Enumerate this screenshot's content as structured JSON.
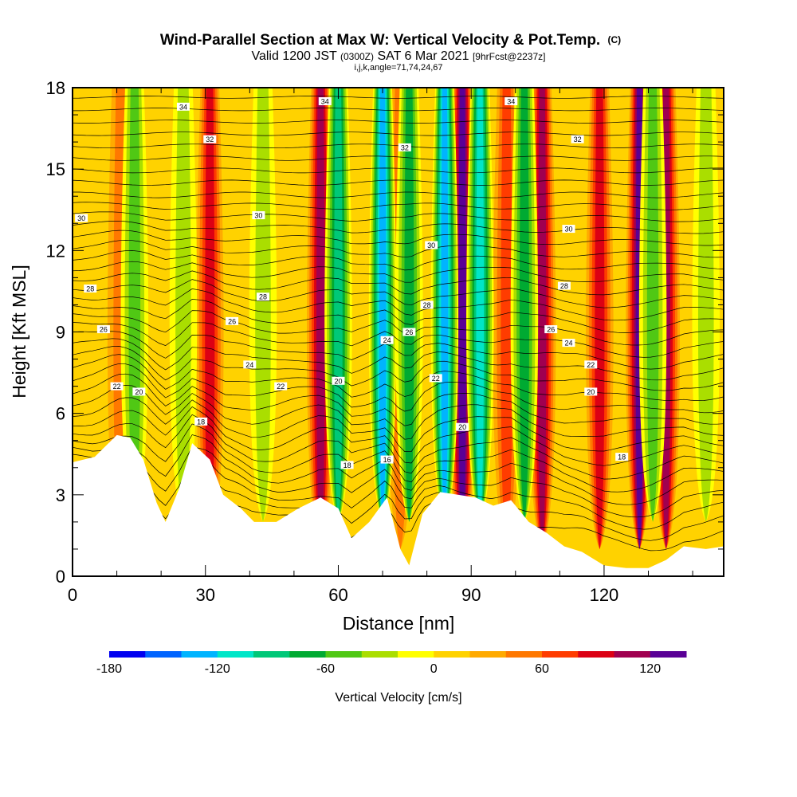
{
  "header": {
    "title_main": "Wind-Parallel Section at Max W: Vertical Velocity & Pot.Temp.",
    "title_mark": "(C)",
    "valid_prefix": "Valid 1200 JST",
    "valid_zulu": "(0300Z)",
    "valid_date": "SAT 6 Mar 2021",
    "forecast": "[9hrFcst@2237z]",
    "grid_info": "i,j,k,angle=71,74,24,67"
  },
  "chart_data": {
    "type": "heatmap",
    "title": "Wind-Parallel Section at Max W: Vertical Velocity & Pot.Temp.",
    "xlabel": "Distance [nm]",
    "ylabel": "Height [Kft MSL]",
    "xlim": [
      0,
      147
    ],
    "ylim": [
      0,
      18
    ],
    "x_ticks": [
      0,
      30,
      60,
      90,
      120
    ],
    "x_tick_labels": [
      "0",
      "30",
      "60",
      "90",
      "120"
    ],
    "y_ticks": [
      0,
      3,
      6,
      9,
      12,
      15,
      18
    ],
    "y_tick_labels": [
      "0",
      "3",
      "6",
      "9",
      "12",
      "15",
      "18"
    ],
    "colorbar": {
      "label": "Vertical Velocity [cm/s]",
      "min": -180,
      "max": 140,
      "step": 20,
      "tick_values": [
        -180,
        -120,
        -60,
        0,
        60,
        120
      ],
      "tick_labels": [
        "-180",
        "-120",
        "-60",
        "0",
        "60",
        "120"
      ],
      "colors": [
        "#0000f0",
        "#0064ff",
        "#00b4ff",
        "#00e6c8",
        "#00c878",
        "#00aa32",
        "#50c814",
        "#aade00",
        "#ffff00",
        "#ffd200",
        "#ffaa00",
        "#ff7800",
        "#ff3c00",
        "#dc0014",
        "#a00050",
        "#5a0096"
      ]
    },
    "updrafts": [
      {
        "x": 11,
        "w": 45
      },
      {
        "x": 31,
        "w": 95
      },
      {
        "x": 56,
        "w": 110
      },
      {
        "x": 74,
        "w": 55
      },
      {
        "x": 88,
        "w": 130
      },
      {
        "x": 98,
        "w": 75
      },
      {
        "x": 106,
        "w": 105
      },
      {
        "x": 119,
        "w": 90
      },
      {
        "x": 128,
        "w": 125
      },
      {
        "x": 134,
        "w": 105
      }
    ],
    "downdrafts": [
      {
        "x": 14,
        "w": -60
      },
      {
        "x": 25,
        "w": -55
      },
      {
        "x": 43,
        "w": -45
      },
      {
        "x": 60,
        "w": -110
      },
      {
        "x": 70,
        "w": -140
      },
      {
        "x": 76,
        "w": -90
      },
      {
        "x": 84,
        "w": -150
      },
      {
        "x": 92,
        "w": -130
      },
      {
        "x": 102,
        "w": -80
      },
      {
        "x": 131,
        "w": -75
      },
      {
        "x": 143,
        "w": -45
      }
    ],
    "terrain": [
      [
        0,
        4.2
      ],
      [
        5,
        4.4
      ],
      [
        10,
        5.2
      ],
      [
        13,
        5.1
      ],
      [
        16,
        4.3
      ],
      [
        19,
        2.7
      ],
      [
        21,
        2.0
      ],
      [
        24,
        3.2
      ],
      [
        27,
        4.9
      ],
      [
        31,
        4.3
      ],
      [
        34,
        3.0
      ],
      [
        38,
        2.5
      ],
      [
        41,
        2.0
      ],
      [
        46,
        2.0
      ],
      [
        51,
        2.5
      ],
      [
        56,
        2.9
      ],
      [
        60,
        2.5
      ],
      [
        63,
        1.4
      ],
      [
        67,
        2.0
      ],
      [
        71,
        2.9
      ],
      [
        74,
        1.0
      ],
      [
        76,
        0.4
      ],
      [
        79,
        2.3
      ],
      [
        83,
        3.1
      ],
      [
        87,
        3.0
      ],
      [
        91,
        2.9
      ],
      [
        95,
        2.6
      ],
      [
        99,
        2.8
      ],
      [
        103,
        2.0
      ],
      [
        107,
        1.6
      ],
      [
        111,
        1.1
      ],
      [
        115,
        0.9
      ],
      [
        120,
        0.4
      ],
      [
        125,
        0.3
      ],
      [
        130,
        0.3
      ],
      [
        134,
        0.6
      ],
      [
        138,
        1.1
      ],
      [
        143,
        1.0
      ],
      [
        147,
        1.1
      ]
    ],
    "theta_contours": [
      {
        "value": 16,
        "label_x": 71,
        "label_y": 4.3
      },
      {
        "value": 18,
        "label_x": 62,
        "label_y": 4.1
      },
      {
        "value": 18,
        "label_x": 124,
        "label_y": 4.4
      },
      {
        "value": 18,
        "label_x": 29,
        "label_y": 5.7
      },
      {
        "value": 20,
        "label_x": 15,
        "label_y": 6.8
      },
      {
        "value": 20,
        "label_x": 60,
        "label_y": 7.2
      },
      {
        "value": 20,
        "label_x": 88,
        "label_y": 5.5
      },
      {
        "value": 20,
        "label_x": 117,
        "label_y": 6.8
      },
      {
        "value": 22,
        "label_x": 10,
        "label_y": 7.0
      },
      {
        "value": 22,
        "label_x": 47,
        "label_y": 7.0
      },
      {
        "value": 22,
        "label_x": 82,
        "label_y": 7.3
      },
      {
        "value": 22,
        "label_x": 117,
        "label_y": 7.8
      },
      {
        "value": 24,
        "label_x": 40,
        "label_y": 7.8
      },
      {
        "value": 24,
        "label_x": 71,
        "label_y": 8.7
      },
      {
        "value": 24,
        "label_x": 112,
        "label_y": 8.6
      },
      {
        "value": 26,
        "label_x": 7,
        "label_y": 9.1
      },
      {
        "value": 26,
        "label_x": 36,
        "label_y": 9.4
      },
      {
        "value": 26,
        "label_x": 76,
        "label_y": 9.0
      },
      {
        "value": 26,
        "label_x": 108,
        "label_y": 9.1
      },
      {
        "value": 28,
        "label_x": 4,
        "label_y": 10.6
      },
      {
        "value": 28,
        "label_x": 43,
        "label_y": 10.3
      },
      {
        "value": 28,
        "label_x": 80,
        "label_y": 10.0
      },
      {
        "value": 28,
        "label_x": 111,
        "label_y": 10.7
      },
      {
        "value": 30,
        "label_x": 2,
        "label_y": 13.2
      },
      {
        "value": 30,
        "label_x": 42,
        "label_y": 13.3
      },
      {
        "value": 30,
        "label_x": 81,
        "label_y": 12.2
      },
      {
        "value": 30,
        "label_x": 112,
        "label_y": 12.8
      },
      {
        "value": 32,
        "label_x": 31,
        "label_y": 16.1
      },
      {
        "value": 32,
        "label_x": 75,
        "label_y": 15.8
      },
      {
        "value": 32,
        "label_x": 114,
        "label_y": 16.1
      },
      {
        "value": 34,
        "label_x": 25,
        "label_y": 17.3
      },
      {
        "value": 34,
        "label_x": 57,
        "label_y": 17.5
      },
      {
        "value": 34,
        "label_x": 99,
        "label_y": 17.5
      }
    ]
  }
}
